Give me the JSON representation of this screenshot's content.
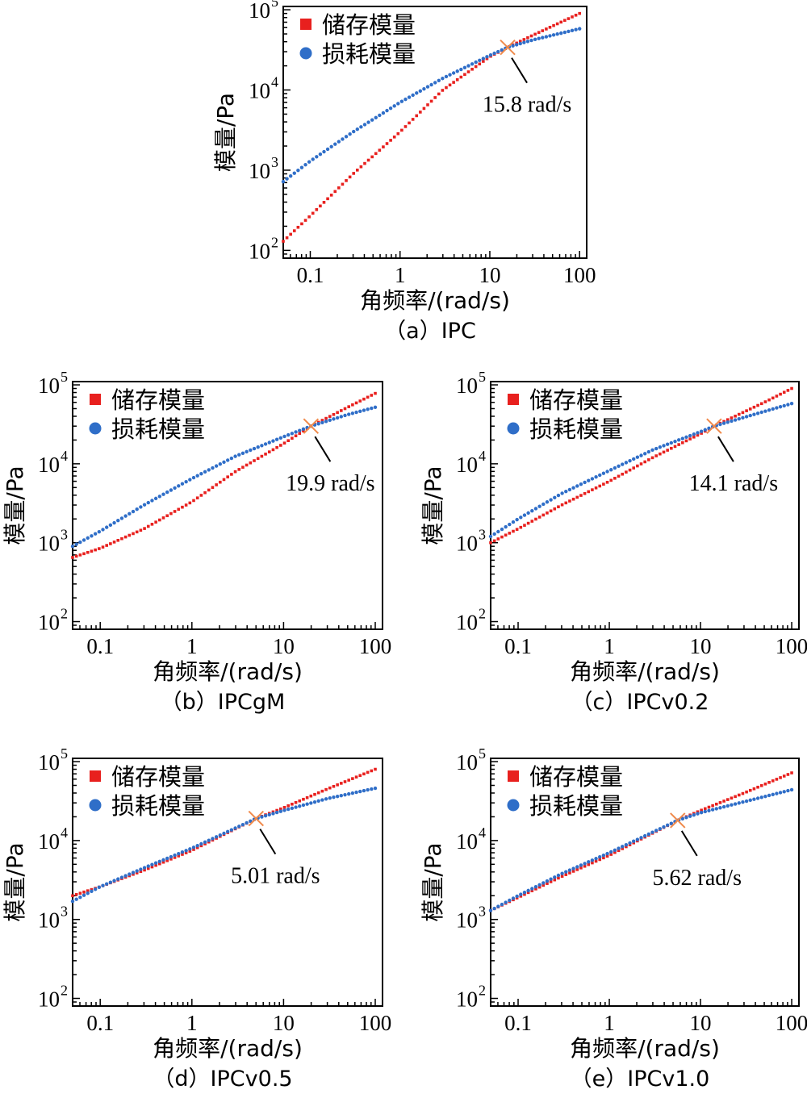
{
  "figure": {
    "colors": {
      "storage": "#e8201e",
      "loss": "#2f6ec8",
      "crossover": "#f08a4b"
    }
  },
  "chart_data": [
    {
      "type": "scatter",
      "caption": "（a）IPC",
      "xlabel": "角频率/(rad/s)",
      "ylabel": "模量/Pa",
      "xscale": "log",
      "yscale": "log",
      "xlim": [
        0.05,
        120
      ],
      "ylim": [
        80,
        110000
      ],
      "x_ticks": [
        "0.1",
        "1",
        "10",
        "100"
      ],
      "y_ticks": [
        {
          "base": "10",
          "exp": "2"
        },
        {
          "base": "10",
          "exp": "3"
        },
        {
          "base": "10",
          "exp": "4"
        },
        {
          "base": "10",
          "exp": "5"
        }
      ],
      "legend": "top-left",
      "series": [
        {
          "name": "储存模量",
          "marker": "square",
          "x": [
            0.05,
            0.1,
            0.3,
            1,
            3,
            10,
            15.8,
            30,
            100
          ],
          "y": [
            130,
            270,
            900,
            3000,
            10000,
            26000,
            34000,
            48000,
            90000
          ]
        },
        {
          "name": "损耗模量",
          "marker": "circle",
          "x": [
            0.05,
            0.1,
            0.3,
            1,
            3,
            10,
            15.8,
            30,
            100
          ],
          "y": [
            720,
            1300,
            3000,
            7000,
            14000,
            27000,
            34000,
            42000,
            58000
          ]
        }
      ],
      "crossover": {
        "x": 15.8,
        "y": 34000,
        "label": "15.8 rad/s"
      }
    },
    {
      "type": "scatter",
      "caption": "（b）IPCgM",
      "xlabel": "角频率/(rad/s)",
      "ylabel": "模量/Pa",
      "xscale": "log",
      "yscale": "log",
      "xlim": [
        0.05,
        120
      ],
      "ylim": [
        80,
        110000
      ],
      "x_ticks": [
        "0.1",
        "1",
        "10",
        "100"
      ],
      "y_ticks": [
        {
          "base": "10",
          "exp": "2"
        },
        {
          "base": "10",
          "exp": "3"
        },
        {
          "base": "10",
          "exp": "4"
        },
        {
          "base": "10",
          "exp": "5"
        }
      ],
      "legend": "top-left",
      "series": [
        {
          "name": "储存模量",
          "marker": "square",
          "x": [
            0.05,
            0.1,
            0.3,
            1,
            3,
            10,
            19.9,
            50,
            100
          ],
          "y": [
            650,
            850,
            1500,
            3300,
            8000,
            18000,
            30000,
            52000,
            78000
          ]
        },
        {
          "name": "损耗模量",
          "marker": "circle",
          "x": [
            0.05,
            0.1,
            0.3,
            1,
            3,
            10,
            19.9,
            50,
            100
          ],
          "y": [
            900,
            1400,
            3000,
            6500,
            12500,
            22000,
            30000,
            42000,
            52000
          ]
        }
      ],
      "crossover": {
        "x": 19.9,
        "y": 30000,
        "label": "19.9 rad/s"
      }
    },
    {
      "type": "scatter",
      "caption": "（c）IPCv0.2",
      "xlabel": "角频率/(rad/s)",
      "ylabel": "模量/Pa",
      "xscale": "log",
      "yscale": "log",
      "xlim": [
        0.05,
        120
      ],
      "ylim": [
        80,
        110000
      ],
      "x_ticks": [
        "0.1",
        "1",
        "10",
        "100"
      ],
      "y_ticks": [
        {
          "base": "10",
          "exp": "2"
        },
        {
          "base": "10",
          "exp": "3"
        },
        {
          "base": "10",
          "exp": "4"
        },
        {
          "base": "10",
          "exp": "5"
        }
      ],
      "legend": "top-left",
      "series": [
        {
          "name": "储存模量",
          "marker": "square",
          "x": [
            0.05,
            0.1,
            0.3,
            1,
            3,
            10,
            14.1,
            50,
            100
          ],
          "y": [
            1000,
            1500,
            3000,
            6000,
            12000,
            24000,
            30000,
            60000,
            90000
          ]
        },
        {
          "name": "损耗模量",
          "marker": "circle",
          "x": [
            0.05,
            0.1,
            0.3,
            1,
            3,
            10,
            14.1,
            50,
            100
          ],
          "y": [
            1200,
            2000,
            4200,
            8200,
            15000,
            25500,
            30000,
            46000,
            58000
          ]
        }
      ],
      "crossover": {
        "x": 14.1,
        "y": 30000,
        "label": "14.1 rad/s"
      }
    },
    {
      "type": "scatter",
      "caption": "（d）IPCv0.5",
      "xlabel": "角频率/(rad/s)",
      "ylabel": "模量/Pa",
      "xscale": "log",
      "yscale": "log",
      "xlim": [
        0.05,
        120
      ],
      "ylim": [
        80,
        110000
      ],
      "x_ticks": [
        "0.1",
        "1",
        "10",
        "100"
      ],
      "y_ticks": [
        {
          "base": "10",
          "exp": "2"
        },
        {
          "base": "10",
          "exp": "3"
        },
        {
          "base": "10",
          "exp": "4"
        },
        {
          "base": "10",
          "exp": "5"
        }
      ],
      "legend": "top-left",
      "series": [
        {
          "name": "储存模量",
          "marker": "square",
          "x": [
            0.05,
            0.1,
            0.3,
            1,
            5.01,
            10,
            30,
            100
          ],
          "y": [
            2000,
            2600,
            4200,
            7500,
            19000,
            26000,
            45000,
            80000
          ]
        },
        {
          "name": "损耗模量",
          "marker": "circle",
          "x": [
            0.05,
            0.1,
            0.3,
            1,
            5.01,
            10,
            30,
            100
          ],
          "y": [
            1700,
            2600,
            4500,
            8000,
            19000,
            24000,
            34000,
            46000
          ]
        }
      ],
      "crossover": {
        "x": 5.01,
        "y": 19000,
        "label": "5.01 rad/s"
      }
    },
    {
      "type": "scatter",
      "caption": "（e）IPCv1.0",
      "xlabel": "角频率/(rad/s)",
      "ylabel": "模量/Pa",
      "xscale": "log",
      "yscale": "log",
      "xlim": [
        0.05,
        120
      ],
      "ylim": [
        80,
        110000
      ],
      "x_ticks": [
        "0.1",
        "1",
        "10",
        "100"
      ],
      "y_ticks": [
        {
          "base": "10",
          "exp": "2"
        },
        {
          "base": "10",
          "exp": "3"
        },
        {
          "base": "10",
          "exp": "4"
        },
        {
          "base": "10",
          "exp": "5"
        }
      ],
      "legend": "top-left",
      "series": [
        {
          "name": "储存模量",
          "marker": "square",
          "x": [
            0.05,
            0.1,
            0.3,
            1,
            5.62,
            10,
            30,
            100
          ],
          "y": [
            1300,
            1900,
            3500,
            6500,
            18000,
            24000,
            40000,
            72000
          ]
        },
        {
          "name": "损耗模量",
          "marker": "circle",
          "x": [
            0.05,
            0.1,
            0.3,
            1,
            5.62,
            10,
            30,
            100
          ],
          "y": [
            1300,
            2000,
            3800,
            7000,
            18000,
            22500,
            31000,
            44000
          ]
        }
      ],
      "crossover": {
        "x": 5.62,
        "y": 18000,
        "label": "5.62 rad/s"
      }
    }
  ]
}
